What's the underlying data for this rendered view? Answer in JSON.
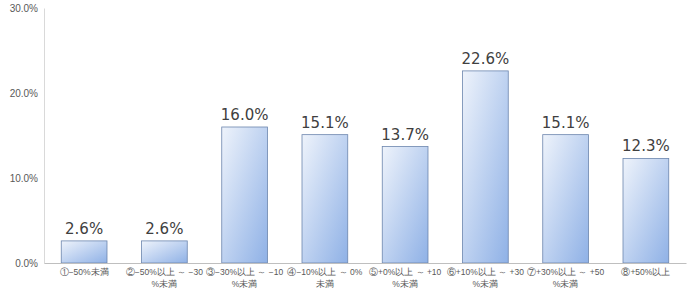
{
  "chart_data": {
    "type": "bar",
    "categories": [
      "①−50%未満",
      "②−50%以上 ～ −30%未満",
      "③−30%以上 ～ −10%未満",
      "④−10%以上 ～ 0%未満",
      "⑤+0%以上 ～ +10%未満",
      "⑥+10%以上 ～ +30%未満",
      "⑦+30%以上 ～ +50%未満",
      "⑧+50%以上"
    ],
    "values": [
      2.6,
      2.6,
      16.0,
      15.1,
      13.7,
      22.6,
      15.1,
      12.3
    ],
    "value_labels": [
      "2.6%",
      "2.6%",
      "16.0%",
      "15.1%",
      "13.7%",
      "22.6%",
      "15.1%",
      "12.3%"
    ],
    "color": "#8fb1e6",
    "ylim": [
      0,
      30
    ],
    "yticks": [
      {
        "value": 0,
        "label": "0.0%"
      },
      {
        "value": 10,
        "label": "10.0%"
      },
      {
        "value": 20,
        "label": "20.0%"
      },
      {
        "value": 30,
        "label": "30.0%"
      }
    ],
    "grid": false,
    "data_labels": true
  }
}
